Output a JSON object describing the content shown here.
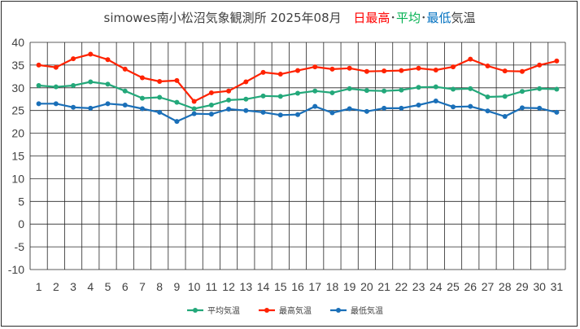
{
  "chart_data": {
    "type": "line",
    "title": {
      "prefix": "simowes南小松沼気象観測所 2025年08月",
      "parts": [
        {
          "text": "日最高",
          "color": "#ff0000"
        },
        {
          "text": "･",
          "color": "#404040"
        },
        {
          "text": "平均",
          "color": "#00b050"
        },
        {
          "text": "･",
          "color": "#404040"
        },
        {
          "text": "最低",
          "color": "#0070c0"
        },
        {
          "text": "気温",
          "color": "#404040"
        }
      ]
    },
    "xlabel": "",
    "ylabel": "",
    "ylim": [
      -10,
      40
    ],
    "y_ticks": [
      40,
      35,
      30,
      25,
      20,
      15,
      10,
      5,
      0,
      -5,
      -10
    ],
    "x": [
      1,
      2,
      3,
      4,
      5,
      6,
      7,
      8,
      9,
      10,
      11,
      12,
      13,
      14,
      15,
      16,
      17,
      18,
      19,
      20,
      21,
      22,
      23,
      24,
      25,
      26,
      27,
      28,
      29,
      30,
      31
    ],
    "grid": true,
    "legend_position": "bottom",
    "series": [
      {
        "name": "平均気温",
        "color": "#23a87a",
        "values": [
          30.5,
          30.2,
          30.5,
          31.3,
          30.8,
          29.3,
          27.7,
          27.9,
          26.8,
          25.4,
          26.2,
          27.3,
          27.5,
          28.2,
          28.1,
          28.8,
          29.3,
          28.9,
          29.8,
          29.4,
          29.3,
          29.5,
          30.1,
          30.2,
          29.7,
          29.8,
          28.0,
          28.1,
          29.2,
          29.8,
          29.7
        ]
      },
      {
        "name": "最高気温",
        "color": "#ff2200",
        "values": [
          35.0,
          34.5,
          36.4,
          37.4,
          36.2,
          34.1,
          32.2,
          31.4,
          31.6,
          27.0,
          28.9,
          29.3,
          31.3,
          33.4,
          33.0,
          33.8,
          34.6,
          34.1,
          34.3,
          33.6,
          33.7,
          33.8,
          34.3,
          33.9,
          34.6,
          36.3,
          34.8,
          33.7,
          33.6,
          35.0,
          35.9
        ]
      },
      {
        "name": "最低気温",
        "color": "#1a6fb8",
        "values": [
          26.5,
          26.5,
          25.7,
          25.5,
          26.5,
          26.2,
          25.4,
          24.6,
          22.6,
          24.3,
          24.2,
          25.3,
          25.0,
          24.6,
          24.0,
          24.1,
          25.9,
          24.5,
          25.4,
          24.8,
          25.5,
          25.5,
          26.2,
          27.1,
          25.8,
          25.9,
          24.9,
          23.7,
          25.6,
          25.5,
          24.6
        ]
      }
    ]
  }
}
